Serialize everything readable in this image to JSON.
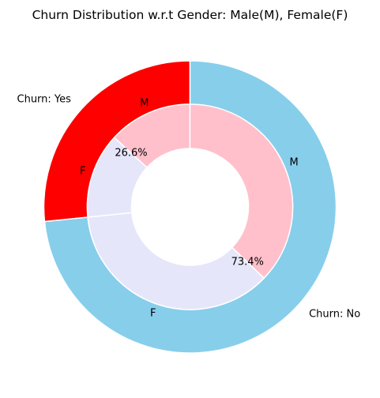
{
  "chart_data": {
    "type": "pie",
    "title": "Churn Distribution w.r.t Gender: Male(M), Female(F)",
    "rings": [
      {
        "ring": "outer",
        "slices": [
          {
            "label": "Churn: Yes",
            "value": 26.6,
            "color": "#ff0000"
          },
          {
            "label": "Churn: No",
            "value": 73.4,
            "color": "#87ceeb"
          }
        ]
      },
      {
        "ring": "inner",
        "slices": [
          {
            "label": "M",
            "value": 13.2,
            "color": "#ffc0cb",
            "pct_text": ""
          },
          {
            "label": "F",
            "value": 13.4,
            "color": "#e6e6fa",
            "pct_text": "26.6%"
          },
          {
            "label": "F",
            "value": 36.2,
            "color": "#e6e6fa",
            "pct_text": ""
          },
          {
            "label": "M",
            "value": 37.2,
            "color": "#ffc0cb",
            "pct_text": "73.4%"
          }
        ]
      }
    ],
    "start_angle_deg": 90,
    "direction": "counterclockwise"
  }
}
